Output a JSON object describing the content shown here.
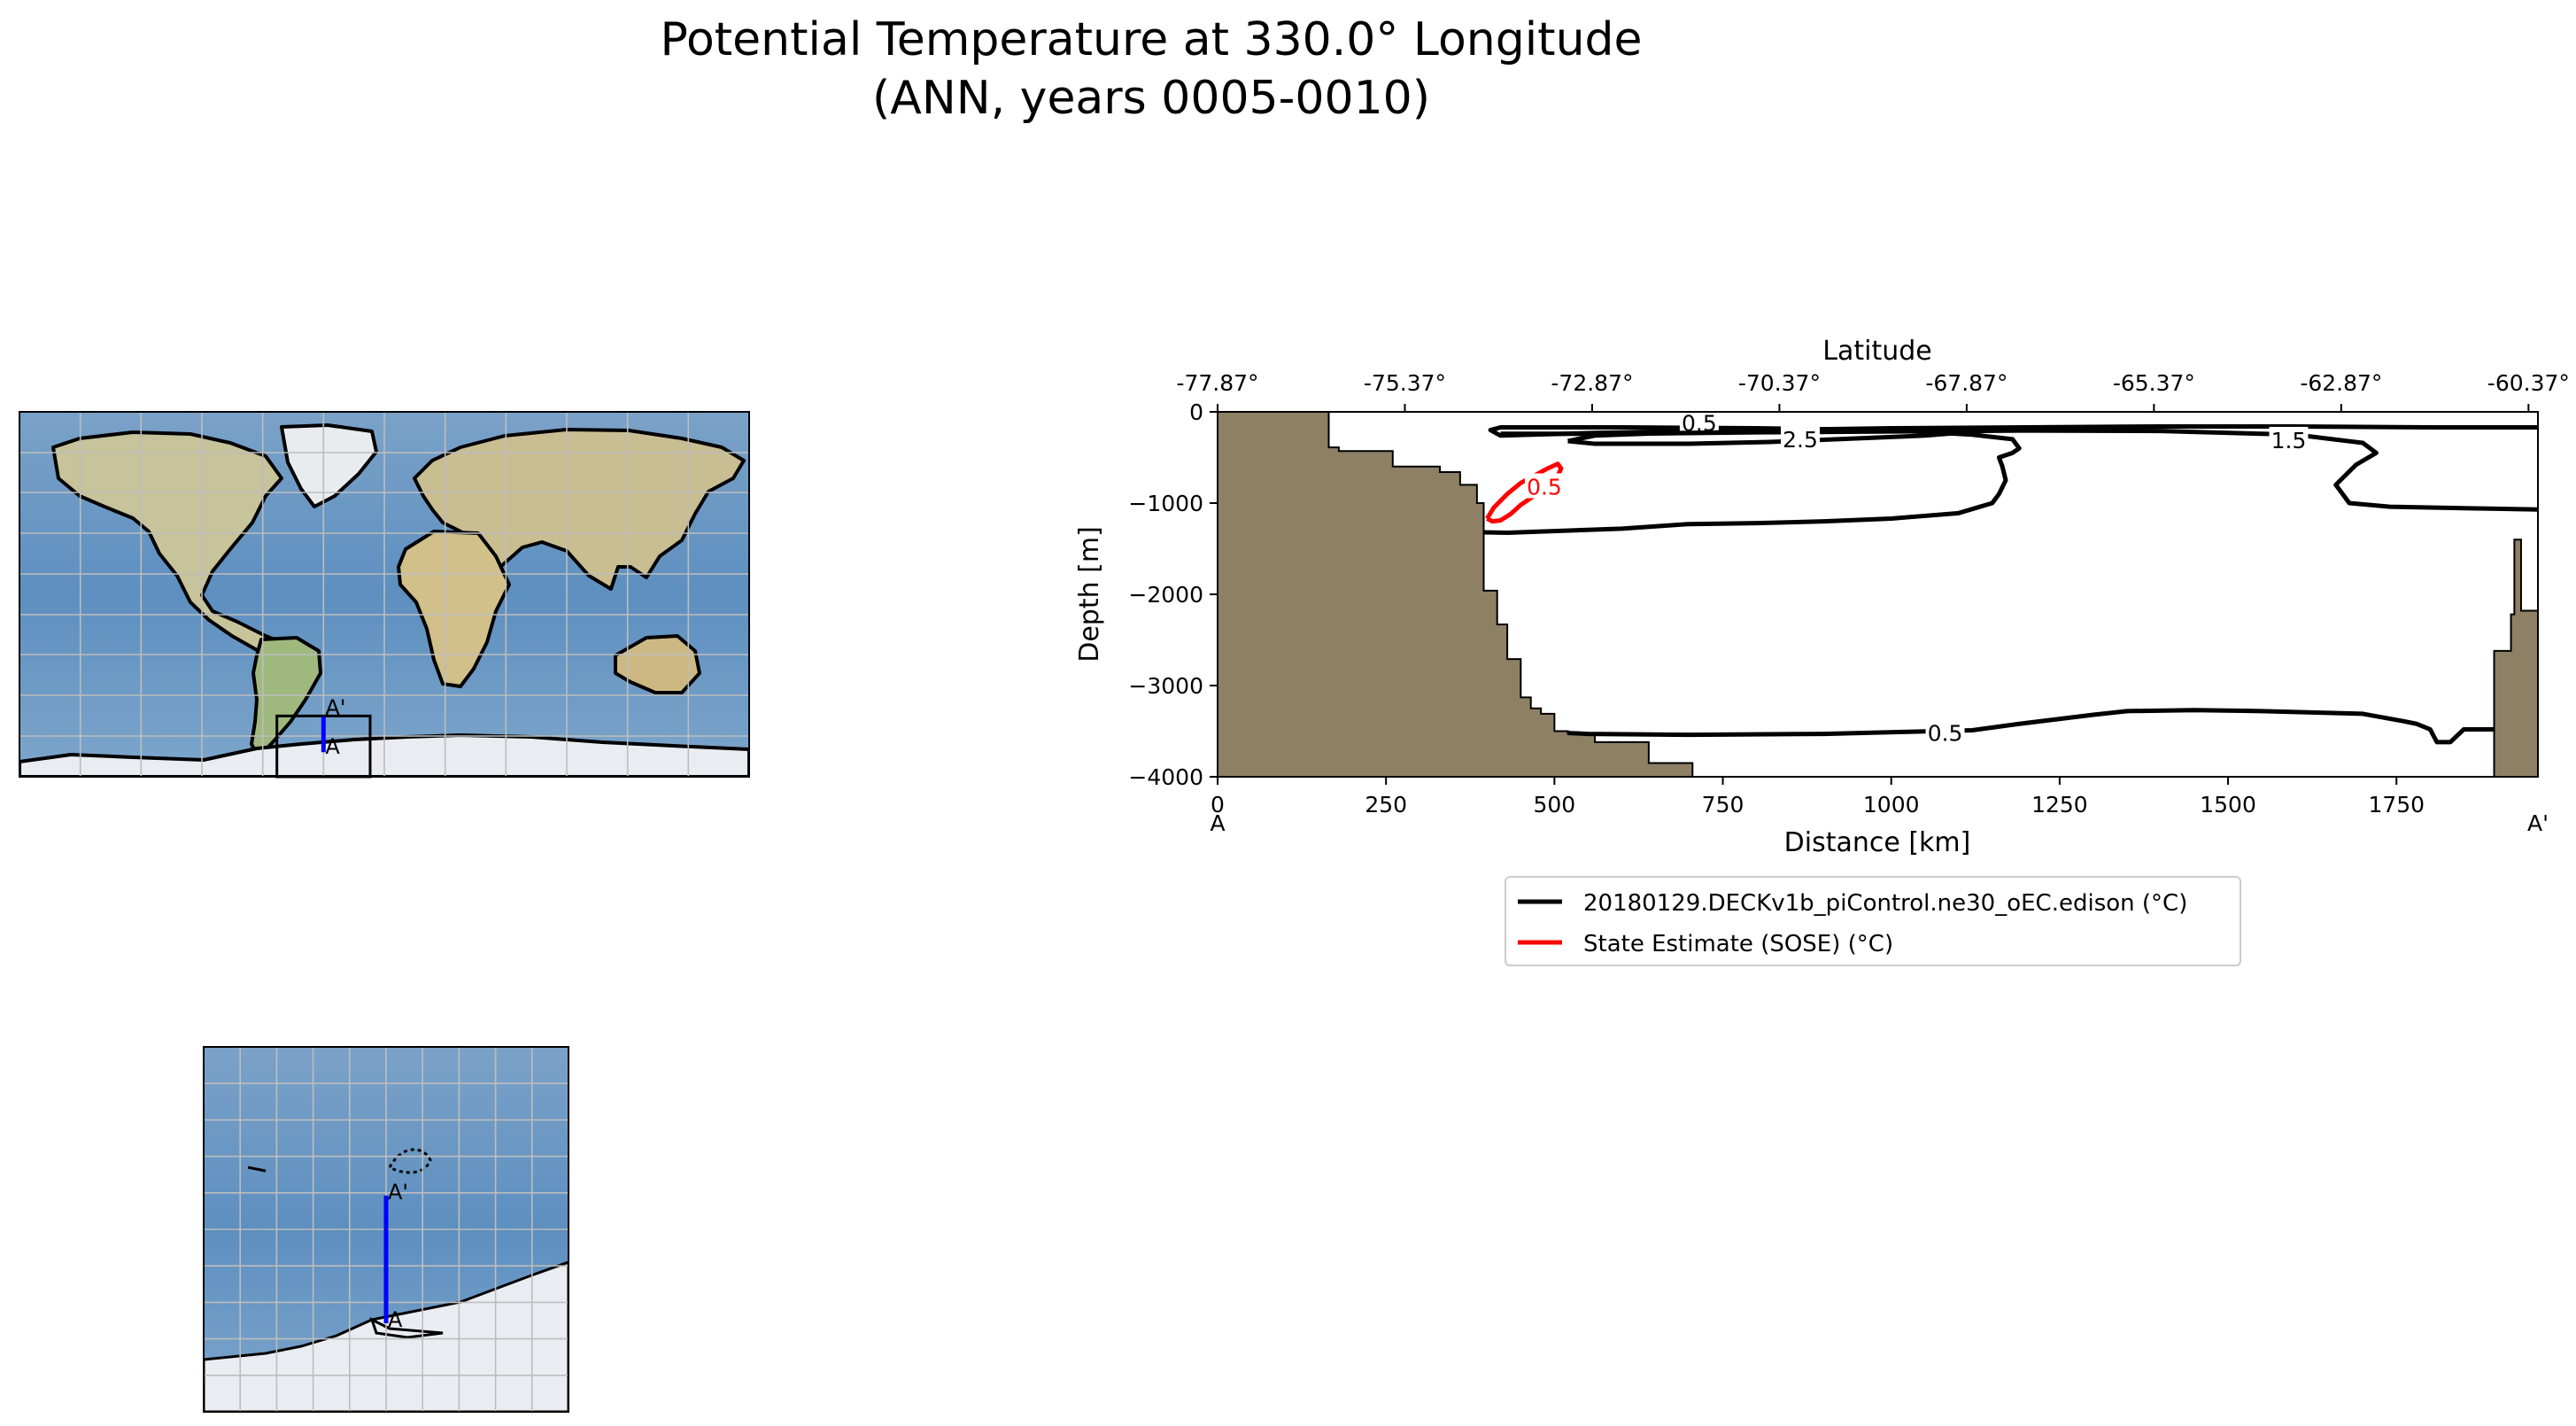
{
  "figure": {
    "title_line1": "Potential Temperature at 330.0° Longitude",
    "title_line2": "(ANN, years 0005-0010)"
  },
  "colors": {
    "model_contour": "#000000",
    "sose_contour": "#ff0000",
    "land": "#8d8065",
    "section_line": "#0000ff",
    "ocean": "#6f9ac2",
    "ice": "#e7ecf2",
    "grid": "#b4b4b4"
  },
  "maps": {
    "global": {
      "projection": "PlateCarree",
      "lon_range": [
        -180,
        180
      ],
      "lat_range": [
        -90,
        90
      ],
      "inset_box_lon": [
        -53,
        -7
      ],
      "inset_box_lat": [
        -90,
        -60
      ],
      "section_lon": -30,
      "section_lat": [
        -77.87,
        -60.37
      ],
      "start_label": "A",
      "end_label": "A'"
    },
    "inset": {
      "lon_range": [
        -55,
        -5
      ],
      "lat_range": [
        -90,
        -40
      ],
      "grid_step_deg": 5,
      "section_lon": -30,
      "section_lat": [
        -77.87,
        -60.37
      ],
      "start_label": "A",
      "end_label": "A'"
    }
  },
  "chart_data": {
    "type": "contour",
    "top_axis_label": "Latitude",
    "top_ticks": [
      "-77.87°",
      "-75.37°",
      "-72.87°",
      "-70.37°",
      "-67.87°",
      "-65.37°",
      "-62.87°",
      "-60.37°"
    ],
    "top_tick_distance_km": [
      0,
      278,
      556,
      834,
      1112,
      1390,
      1668,
      1946
    ],
    "xlabel": "Distance [km]",
    "ylabel": "Depth [m]",
    "xlim": [
      0,
      1960
    ],
    "ylim": [
      -4000,
      0
    ],
    "xticks": [
      0,
      250,
      500,
      750,
      1000,
      1250,
      1500,
      1750
    ],
    "yticks": [
      0,
      -1000,
      -2000,
      -3000,
      -4000
    ],
    "start_label": "A",
    "end_label": "A'",
    "legend_position": "below",
    "legend": [
      {
        "label": "20180129.DECKv1b_piControl.ne30_oEC.edison (°C)",
        "color": "#000000"
      },
      {
        "label": "State Estimate (SOSE) (°C)",
        "color": "#ff0000"
      }
    ],
    "bathymetry": {
      "x": [
        0,
        165,
        165,
        180,
        180,
        260,
        260,
        330,
        330,
        360,
        360,
        385,
        385,
        395,
        395,
        415,
        415,
        430,
        430,
        450,
        450,
        465,
        465,
        480,
        480,
        500,
        500,
        520,
        520,
        560,
        560,
        640,
        640,
        705,
        705
      ],
      "depth": [
        0,
        0,
        -390,
        -390,
        -430,
        -430,
        -600,
        -600,
        -660,
        -660,
        -800,
        -800,
        -1000,
        -1000,
        -1960,
        -1960,
        -2330,
        -2330,
        -2710,
        -2710,
        -3130,
        -3130,
        -3250,
        -3250,
        -3310,
        -3310,
        -3500,
        -3500,
        -3530,
        -3530,
        -3620,
        -3620,
        -3850,
        -3850,
        -3900
      ],
      "right_x": [
        1895,
        1895,
        1920,
        1920,
        1925,
        1925,
        1935,
        1935,
        1960
      ],
      "right_depth": [
        -4000,
        -2620,
        -2620,
        -2220,
        -2220,
        -1400,
        -1400,
        -2180,
        -2180
      ]
    },
    "series": [
      {
        "name": "20180129.DECKv1b_piControl.ne30_oEC.edison (°C)",
        "level": 0.5,
        "label": "0.5",
        "label_x": 1080,
        "label_y": -3520,
        "x": [
          520,
          550,
          700,
          900,
          1010,
          1120,
          1190,
          1300,
          1350,
          1450,
          1550,
          1700,
          1760,
          1780,
          1800,
          1810,
          1830,
          1850,
          1895
        ],
        "y": [
          -3520,
          -3530,
          -3540,
          -3530,
          -3510,
          -3490,
          -3420,
          -3320,
          -3280,
          -3270,
          -3280,
          -3310,
          -3390,
          -3420,
          -3480,
          -3620,
          -3620,
          -3480,
          -3480
        ]
      },
      {
        "name": "20180129.DECKv1b_piControl.ne30_oEC.edison (°C)",
        "level": 0.5,
        "label": "0.5",
        "label_x": 715,
        "label_y": -120,
        "x": [
          395,
          430,
          600,
          700,
          800,
          900,
          1000,
          1100,
          1150,
          1160,
          1170,
          1165,
          1160,
          1180,
          1190,
          1180,
          1120,
          1000,
          800,
          600,
          420,
          405,
          420,
          560,
          800,
          1000,
          1200,
          1400,
          1600,
          1800,
          1960
        ],
        "y": [
          -1320,
          -1325,
          -1280,
          -1230,
          -1220,
          -1200,
          -1170,
          -1110,
          -1000,
          -900,
          -750,
          -600,
          -500,
          -450,
          -400,
          -300,
          -250,
          -200,
          -180,
          -170,
          -170,
          -200,
          -260,
          -230,
          -200,
          -180,
          -170,
          -160,
          -160,
          -170,
          -170
        ]
      },
      {
        "name": "20180129.DECKv1b_piControl.ne30_oEC.edison (°C)",
        "level": 1.5,
        "label": "1.5",
        "label_x": 1590,
        "label_y": -310,
        "x": [
          420,
          600,
          800,
          1000,
          1200,
          1400,
          1600,
          1700,
          1720,
          1690,
          1660,
          1680,
          1740,
          1880,
          1960
        ],
        "y": [
          -240,
          -240,
          -225,
          -215,
          -205,
          -210,
          -250,
          -340,
          -450,
          -580,
          -800,
          -1000,
          -1040,
          -1060,
          -1070
        ]
      },
      {
        "name": "20180129.DECKv1b_piControl.ne30_oEC.edison (°C)",
        "level": 2.5,
        "label": "2.5",
        "label_x": 865,
        "label_y": -300,
        "x": [
          520,
          560,
          700,
          820,
          920,
          1050,
          1170,
          1080,
          950,
          800,
          650,
          560,
          520
        ],
        "y": [
          -320,
          -350,
          -350,
          -330,
          -300,
          -260,
          -190,
          -200,
          -210,
          -220,
          -235,
          -260,
          -320
        ]
      },
      {
        "name": "State Estimate (SOSE) (°C)",
        "level": 0.5,
        "label": "0.5",
        "label_x": 485,
        "label_y": -820,
        "x": [
          400,
          410,
          430,
          450,
          470,
          490,
          505,
          510,
          505,
          490,
          470,
          450,
          435,
          420,
          408,
          400
        ],
        "y": [
          -1170,
          -1050,
          -900,
          -780,
          -700,
          -620,
          -570,
          -620,
          -700,
          -800,
          -920,
          -1020,
          -1120,
          -1190,
          -1200,
          -1170
        ]
      }
    ]
  }
}
